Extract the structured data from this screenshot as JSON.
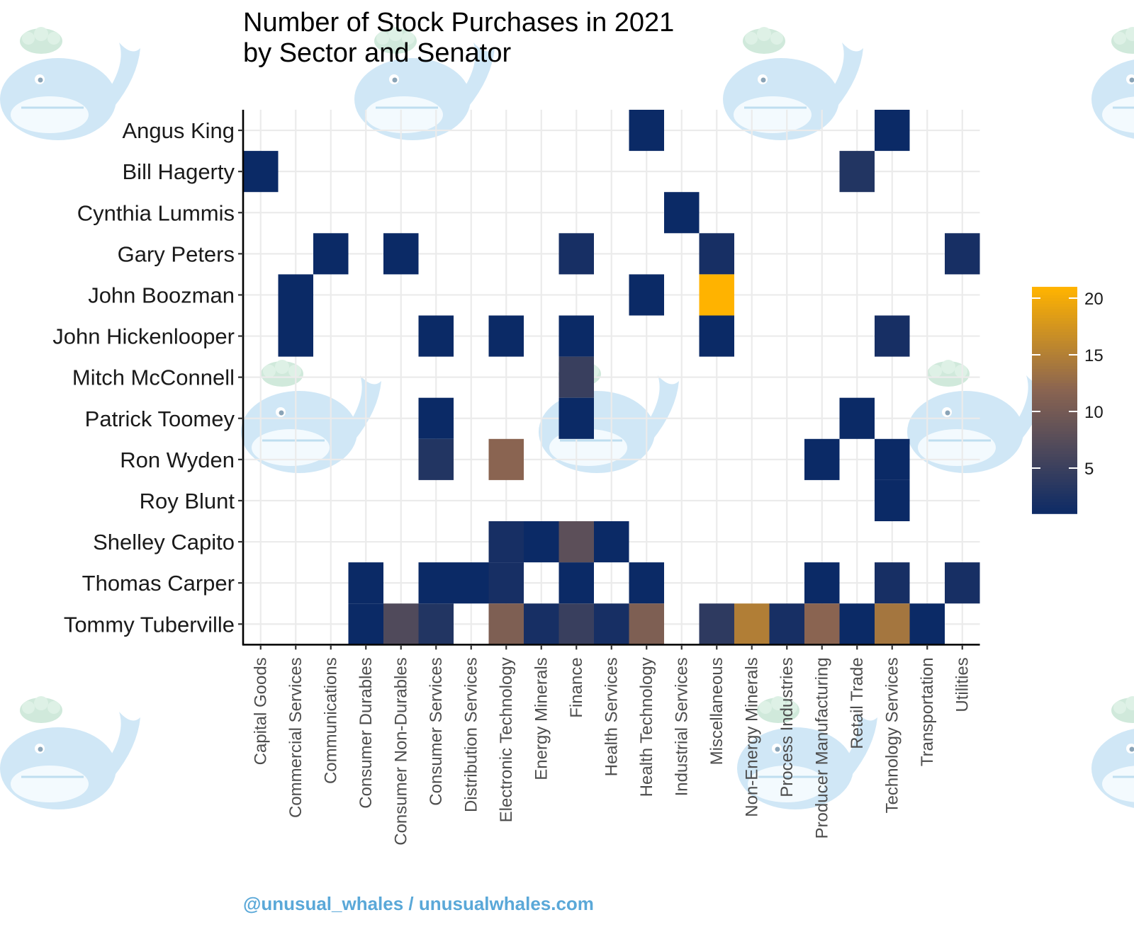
{
  "chart_data": {
    "type": "heatmap",
    "title": "Number of Stock Purchases in 2021",
    "subtitle": "by Sector and Senator",
    "xlabel": "",
    "ylabel": "",
    "x_categories": [
      "Capital Goods",
      "Commercial Services",
      "Communications",
      "Consumer Durables",
      "Consumer Non-Durables",
      "Consumer Services",
      "Distribution Services",
      "Electronic Technology",
      "Energy Minerals",
      "Finance",
      "Health Services",
      "Health Technology",
      "Industrial Services",
      "Miscellaneous",
      "Non-Energy Minerals",
      "Process Industries",
      "Producer Manufacturing",
      "Retail Trade",
      "Technology Services",
      "Transportation",
      "Utilities"
    ],
    "y_categories": [
      "Angus King",
      "Bill Hagerty",
      "Cynthia Lummis",
      "Gary Peters",
      "John Boozman",
      "John Hickenlooper",
      "Mitch McConnell",
      "Patrick Toomey",
      "Ron Wyden",
      "Roy Blunt",
      "Shelley Capito",
      "Thomas Carper",
      "Tommy Tuberville"
    ],
    "cells": [
      {
        "senator": "Angus King",
        "sector": "Health Technology",
        "value": 1
      },
      {
        "senator": "Angus King",
        "sector": "Technology Services",
        "value": 1
      },
      {
        "senator": "Bill Hagerty",
        "sector": "Capital Goods",
        "value": 1
      },
      {
        "senator": "Bill Hagerty",
        "sector": "Retail Trade",
        "value": 3
      },
      {
        "senator": "Cynthia Lummis",
        "sector": "Industrial Services",
        "value": 1
      },
      {
        "senator": "Gary Peters",
        "sector": "Communications",
        "value": 1
      },
      {
        "senator": "Gary Peters",
        "sector": "Consumer Non-Durables",
        "value": 1
      },
      {
        "senator": "Gary Peters",
        "sector": "Finance",
        "value": 2
      },
      {
        "senator": "Gary Peters",
        "sector": "Miscellaneous",
        "value": 2
      },
      {
        "senator": "Gary Peters",
        "sector": "Utilities",
        "value": 2
      },
      {
        "senator": "John Boozman",
        "sector": "Commercial Services",
        "value": 1
      },
      {
        "senator": "John Boozman",
        "sector": "Health Technology",
        "value": 1
      },
      {
        "senator": "John Boozman",
        "sector": "Miscellaneous",
        "value": 21
      },
      {
        "senator": "John Hickenlooper",
        "sector": "Commercial Services",
        "value": 1
      },
      {
        "senator": "John Hickenlooper",
        "sector": "Consumer Services",
        "value": 1
      },
      {
        "senator": "John Hickenlooper",
        "sector": "Electronic Technology",
        "value": 1
      },
      {
        "senator": "John Hickenlooper",
        "sector": "Finance",
        "value": 1
      },
      {
        "senator": "John Hickenlooper",
        "sector": "Miscellaneous",
        "value": 1
      },
      {
        "senator": "John Hickenlooper",
        "sector": "Technology Services",
        "value": 2
      },
      {
        "senator": "Mitch McConnell",
        "sector": "Finance",
        "value": 5
      },
      {
        "senator": "Patrick Toomey",
        "sector": "Consumer Services",
        "value": 1
      },
      {
        "senator": "Patrick Toomey",
        "sector": "Finance",
        "value": 1
      },
      {
        "senator": "Patrick Toomey",
        "sector": "Retail Trade",
        "value": 1
      },
      {
        "senator": "Ron Wyden",
        "sector": "Consumer Services",
        "value": 3
      },
      {
        "senator": "Ron Wyden",
        "sector": "Electronic Technology",
        "value": 12
      },
      {
        "senator": "Ron Wyden",
        "sector": "Producer Manufacturing",
        "value": 1
      },
      {
        "senator": "Ron Wyden",
        "sector": "Technology Services",
        "value": 1
      },
      {
        "senator": "Roy Blunt",
        "sector": "Technology Services",
        "value": 1
      },
      {
        "senator": "Shelley Capito",
        "sector": "Electronic Technology",
        "value": 2
      },
      {
        "senator": "Shelley Capito",
        "sector": "Energy Minerals",
        "value": 1
      },
      {
        "senator": "Shelley Capito",
        "sector": "Finance",
        "value": 8
      },
      {
        "senator": "Shelley Capito",
        "sector": "Health Services",
        "value": 1
      },
      {
        "senator": "Thomas Carper",
        "sector": "Consumer Durables",
        "value": 1
      },
      {
        "senator": "Thomas Carper",
        "sector": "Consumer Services",
        "value": 1
      },
      {
        "senator": "Thomas Carper",
        "sector": "Distribution Services",
        "value": 1
      },
      {
        "senator": "Thomas Carper",
        "sector": "Electronic Technology",
        "value": 2
      },
      {
        "senator": "Thomas Carper",
        "sector": "Finance",
        "value": 1
      },
      {
        "senator": "Thomas Carper",
        "sector": "Health Technology",
        "value": 1
      },
      {
        "senator": "Thomas Carper",
        "sector": "Producer Manufacturing",
        "value": 1
      },
      {
        "senator": "Thomas Carper",
        "sector": "Technology Services",
        "value": 2
      },
      {
        "senator": "Thomas Carper",
        "sector": "Utilities",
        "value": 2
      },
      {
        "senator": "Tommy Tuberville",
        "sector": "Consumer Durables",
        "value": 1
      },
      {
        "senator": "Tommy Tuberville",
        "sector": "Consumer Non-Durables",
        "value": 7
      },
      {
        "senator": "Tommy Tuberville",
        "sector": "Consumer Services",
        "value": 3
      },
      {
        "senator": "Tommy Tuberville",
        "sector": "Electronic Technology",
        "value": 11
      },
      {
        "senator": "Tommy Tuberville",
        "sector": "Energy Minerals",
        "value": 2
      },
      {
        "senator": "Tommy Tuberville",
        "sector": "Finance",
        "value": 5
      },
      {
        "senator": "Tommy Tuberville",
        "sector": "Health Services",
        "value": 2
      },
      {
        "senator": "Tommy Tuberville",
        "sector": "Health Technology",
        "value": 11
      },
      {
        "senator": "Tommy Tuberville",
        "sector": "Miscellaneous",
        "value": 4
      },
      {
        "senator": "Tommy Tuberville",
        "sector": "Non-Energy Minerals",
        "value": 15
      },
      {
        "senator": "Tommy Tuberville",
        "sector": "Process Industries",
        "value": 2
      },
      {
        "senator": "Tommy Tuberville",
        "sector": "Producer Manufacturing",
        "value": 12
      },
      {
        "senator": "Tommy Tuberville",
        "sector": "Retail Trade",
        "value": 1
      },
      {
        "senator": "Tommy Tuberville",
        "sector": "Technology Services",
        "value": 14
      },
      {
        "senator": "Tommy Tuberville",
        "sector": "Transportation",
        "value": 1
      }
    ],
    "color_scale": {
      "low": "#0b2a66",
      "mid": "#8a6451",
      "high": "#ffb300",
      "range": [
        1,
        21
      ],
      "legend_ticks": [
        5,
        10,
        15,
        20
      ],
      "legend_position": "right"
    },
    "grid": true
  },
  "caption": "@unusual_whales / unusualwhales.com",
  "colors": {
    "watermark_body": "#a9d4ee",
    "watermark_spray": "#9fd3b4",
    "caption": "#5aa8d8"
  }
}
